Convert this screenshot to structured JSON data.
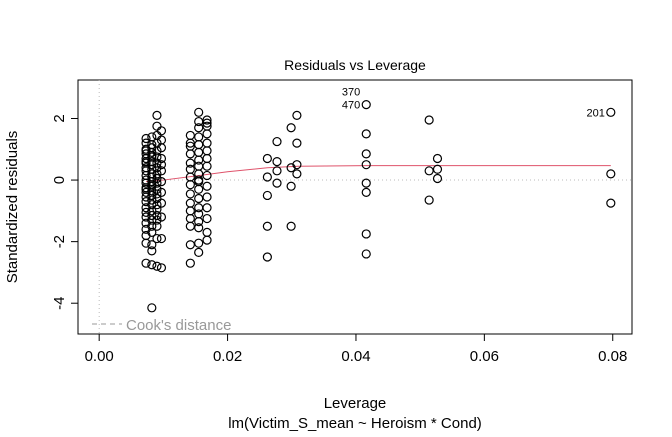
{
  "chart_data": {
    "type": "scatter",
    "title": "Residuals vs Leverage",
    "xlabel": "Leverage",
    "subtitle": "lm(Victim_S_mean ~ Heroism * Cond)",
    "ylabel": "Standardized residuals",
    "xlim": [
      -0.0033,
      0.083
    ],
    "ylim": [
      -5.0,
      3.25
    ],
    "xticks": [
      "0.00",
      "0.02",
      "0.04",
      "0.06",
      "0.08"
    ],
    "xtick_values": [
      0,
      0.02,
      0.04,
      0.06,
      0.08
    ],
    "yticks": [
      "-4",
      "-2",
      "0",
      "2"
    ],
    "ytick_values": [
      -4,
      -2,
      0,
      2
    ],
    "grid": false,
    "reference_lines": {
      "x": 0,
      "y": 0,
      "style": "dotted",
      "color": "#bbbbbb"
    },
    "legend": {
      "label": "Cook's distance",
      "placement": "bottom-left",
      "color": "#999999",
      "style": "dashed"
    },
    "point_columns": [
      {
        "x": 0.0073,
        "y": [
          1.35,
          1.2,
          1.0,
          0.85,
          0.7,
          0.55,
          0.4,
          0.3,
          0.15,
          0,
          -0.1,
          -0.25,
          -0.4,
          -0.55,
          -0.7,
          -0.9,
          -1.05,
          -1.2,
          -1.4,
          -1.6,
          -1.8,
          -2.05,
          -2.7,
          0.95,
          0.6,
          -0.3
        ]
      },
      {
        "x": 0.0082,
        "y": [
          1.4,
          1.15,
          1.05,
          0.9,
          0.75,
          0.6,
          0.5,
          0.35,
          0.2,
          0.1,
          -0.05,
          -0.2,
          -0.35,
          -0.5,
          -0.65,
          -0.8,
          -1.0,
          -1.15,
          -1.3,
          -1.5,
          -1.7,
          -2.1,
          -2.3,
          -2.75,
          -4.15,
          0.8,
          -0.15
        ]
      },
      {
        "x": 0.009,
        "y": [
          2.1,
          1.75,
          1.45,
          1.2,
          0.95,
          0.75,
          0.55,
          0.4,
          0.2,
          0.05,
          -0.1,
          -0.3,
          -0.45,
          -0.6,
          -0.8,
          -0.95,
          -1.15,
          -1.3,
          -1.5,
          -1.9,
          -2.8
        ]
      },
      {
        "x": 0.0097,
        "y": [
          1.6,
          1.3,
          1.05,
          0.7,
          0.3,
          -0.05,
          -0.4,
          -0.75,
          -1.2,
          -1.9,
          0.5,
          -2.85
        ]
      },
      {
        "x": 0.0142,
        "y": [
          1.45,
          1.1,
          0.85,
          0.55,
          0.35,
          0.1,
          -0.15,
          -0.45,
          -0.75,
          -1.0,
          -1.25,
          -1.5,
          -2.1,
          -2.7,
          1.2
        ]
      },
      {
        "x": 0.0155,
        "y": [
          2.2,
          1.9,
          1.7,
          1.4,
          1.15,
          0.9,
          0.65,
          0.45,
          0.2,
          -0.05,
          -0.3,
          -0.6,
          -0.9,
          -1.1,
          -1.35,
          -1.55,
          -2.05,
          -2.35,
          0.0
        ]
      },
      {
        "x": 0.0168,
        "y": [
          1.95,
          1.75,
          1.5,
          1.2,
          0.95,
          0.7,
          0.45,
          0.15,
          -0.2,
          -0.55,
          -0.9,
          -1.25,
          -1.7,
          -1.95,
          1.85
        ]
      },
      {
        "x": 0.0262,
        "y": [
          0.7,
          0.1,
          -0.5,
          -1.5,
          -2.5
        ]
      },
      {
        "x": 0.0277,
        "y": [
          1.25,
          0.6,
          0.3,
          -0.1
        ]
      },
      {
        "x": 0.0299,
        "y": [
          1.7,
          0.4,
          -0.2,
          -1.5
        ]
      },
      {
        "x": 0.0308,
        "y": [
          2.1,
          1.2,
          0.5,
          0.2
        ]
      },
      {
        "x": 0.0416,
        "y": [
          2.45,
          1.5,
          0.85,
          0.5,
          -0.1,
          -0.4,
          -1.75,
          -2.4
        ]
      },
      {
        "x": 0.0514,
        "y": [
          1.95,
          0.3,
          -0.65
        ]
      },
      {
        "x": 0.0527,
        "y": [
          0.7,
          0.35,
          0.05
        ]
      },
      {
        "x": 0.0797,
        "y": [
          2.2,
          0.2,
          -0.75
        ]
      }
    ],
    "point_labels": [
      {
        "text": "470",
        "x": 0.0416,
        "y": 2.45
      },
      {
        "text": "370",
        "x": 0.0416,
        "y": 2.45
      },
      {
        "text": "201",
        "x": 0.0797,
        "y": 2.2
      }
    ],
    "smooth_line": {
      "color": "#df536b",
      "x": [
        0.0073,
        0.01,
        0.015,
        0.02,
        0.0262,
        0.031,
        0.0416,
        0.052,
        0.0797
      ],
      "y": [
        -0.05,
        0.0,
        0.13,
        0.27,
        0.4,
        0.45,
        0.47,
        0.47,
        0.47
      ]
    }
  }
}
